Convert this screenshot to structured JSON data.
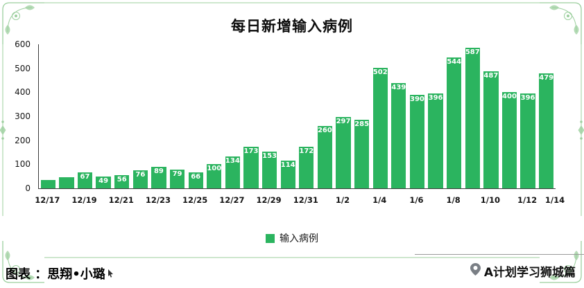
{
  "chart": {
    "title": "每日新增输入病例",
    "legend_label": "输入病例"
  },
  "chart_data": {
    "type": "bar",
    "title": "每日新增输入病例",
    "categories": [
      "12/17",
      "12/18",
      "12/19",
      "12/20",
      "12/21",
      "12/22",
      "12/23",
      "12/24",
      "12/25",
      "12/26",
      "12/27",
      "12/28",
      "12/29",
      "12/30",
      "12/31",
      "1/1",
      "1/2",
      "1/3",
      "1/4",
      "1/5",
      "1/6",
      "1/7",
      "1/8",
      "1/9",
      "1/10",
      "1/11",
      "1/12",
      "1/13"
    ],
    "values": [
      35,
      45,
      67,
      49,
      56,
      76,
      89,
      79,
      66,
      100,
      134,
      173,
      153,
      114,
      172,
      260,
      297,
      285,
      502,
      439,
      390,
      396,
      544,
      587,
      487,
      400,
      396,
      479
    ],
    "bar_labels": [
      "",
      "",
      "67",
      "49",
      "56",
      "76",
      "89",
      "79",
      "66",
      "100",
      "134",
      "173",
      "153",
      "114",
      "172",
      "260",
      "297",
      "285",
      "502",
      "439",
      "390",
      "396",
      "544",
      "587",
      "487",
      "400",
      "396",
      "479"
    ],
    "xticks": [
      {
        "label": "12/17",
        "bar_index": 0
      },
      {
        "label": "12/19",
        "bar_index": 2
      },
      {
        "label": "12/21",
        "bar_index": 4
      },
      {
        "label": "12/23",
        "bar_index": 6
      },
      {
        "label": "12/25",
        "bar_index": 8
      },
      {
        "label": "12/27",
        "bar_index": 10
      },
      {
        "label": "12/29",
        "bar_index": 12
      },
      {
        "label": "12/31",
        "bar_index": 14
      },
      {
        "label": "1/2",
        "bar_index": 16
      },
      {
        "label": "1/4",
        "bar_index": 18
      },
      {
        "label": "1/6",
        "bar_index": 20
      },
      {
        "label": "1/8",
        "bar_index": 22
      },
      {
        "label": "1/10",
        "bar_index": 24
      },
      {
        "label": "1/12",
        "bar_index": 26
      },
      {
        "label": "1/14",
        "bar_index": 28
      }
    ],
    "yticks": [
      0,
      100,
      200,
      300,
      400,
      500,
      600
    ],
    "ylim": [
      0,
      600
    ],
    "xlabel": "",
    "ylabel": "",
    "grid": false,
    "legend": [
      "输入病例"
    ],
    "legend_position": "bottom",
    "bar_color": "#2bb45f"
  },
  "colors": {
    "bar": "#2bb45f",
    "axis": "#3a3a3a",
    "ornament": "#9ccf9e"
  },
  "footer": {
    "credit": "图表 ：思翔•小璐",
    "brand": "A计划学习狮城篇"
  }
}
